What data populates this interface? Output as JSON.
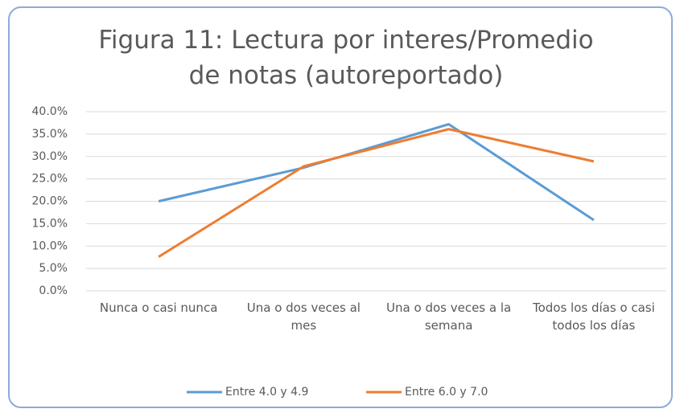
{
  "chart_data": {
    "type": "line",
    "title": "Figura 11: Lectura por interes/Promedio de notas (autoreportado)",
    "categories": [
      "Nunca o casi nunca",
      "Una o dos veces al mes",
      "Una o dos veces a la semana",
      "Todos los días o casi todos los días"
    ],
    "series": [
      {
        "name": "Entre 4.0 y 4.9",
        "color": "#5b9bd5",
        "values": [
          20,
          27.5,
          37.2,
          15.8
        ]
      },
      {
        "name": "Entre 6.0 y 7.0",
        "color": "#ed7d31",
        "values": [
          7.6,
          27.8,
          36.1,
          28.9
        ]
      }
    ],
    "ylim": [
      0,
      40
    ],
    "yticks": [
      {
        "value": 0,
        "label": "0.0%"
      },
      {
        "value": 5,
        "label": "5.0%"
      },
      {
        "value": 10,
        "label": "10.0%"
      },
      {
        "value": 15,
        "label": "15.0%"
      },
      {
        "value": 20,
        "label": "20.0%"
      },
      {
        "value": 25,
        "label": "25.0%"
      },
      {
        "value": 30,
        "label": "30.0%"
      },
      {
        "value": 35,
        "label": "35.0%"
      },
      {
        "value": 40,
        "label": "40.0%"
      }
    ],
    "grid": true,
    "legend": "bottom"
  }
}
